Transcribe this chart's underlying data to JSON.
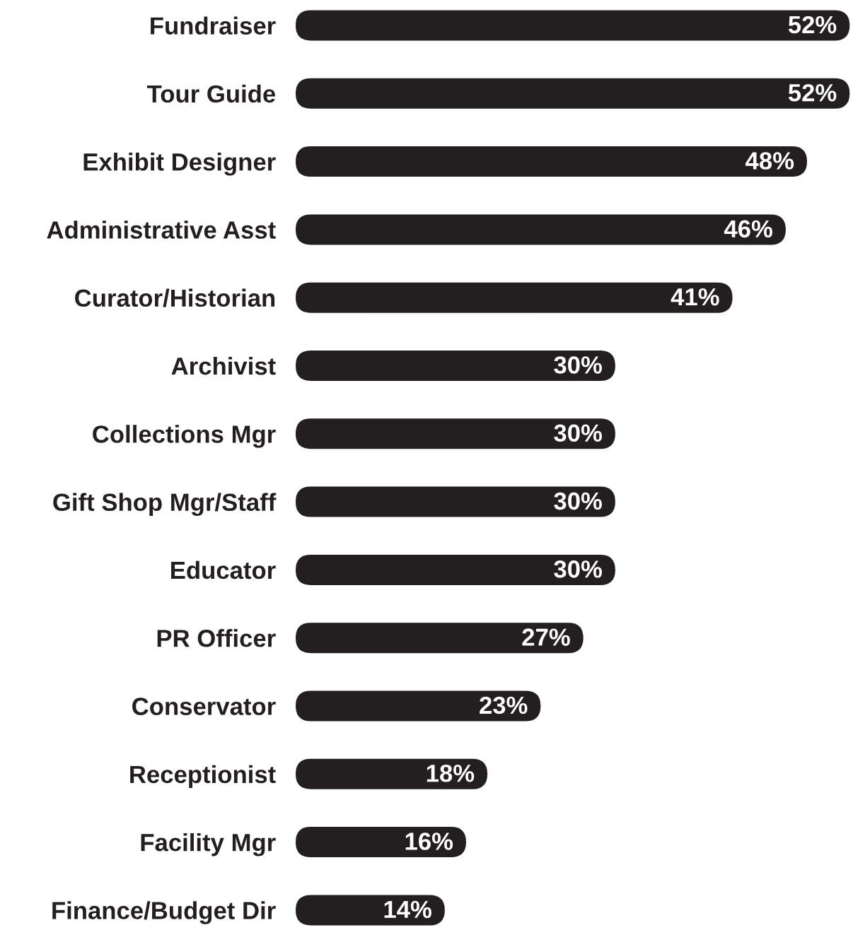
{
  "chart_data": {
    "type": "bar",
    "orientation": "horizontal",
    "color": "#231f20",
    "categories": [
      "Fundraiser",
      "Tour Guide",
      "Exhibit Designer",
      "Administrative Asst",
      "Curator/Historian",
      "Archivist",
      "Collections Mgr",
      "Gift Shop Mgr/Staff",
      "Educator",
      "PR Officer",
      "Conservator",
      "Receptionist",
      "Facility Mgr",
      "Finance/Budget Dir"
    ],
    "values": [
      52,
      52,
      48,
      46,
      41,
      30,
      30,
      30,
      30,
      27,
      23,
      18,
      16,
      14
    ],
    "value_labels": [
      "52%",
      "52%",
      "48%",
      "46%",
      "41%",
      "30%",
      "30%",
      "30%",
      "30%",
      "27%",
      "23%",
      "18%",
      "16%",
      "14%"
    ]
  }
}
